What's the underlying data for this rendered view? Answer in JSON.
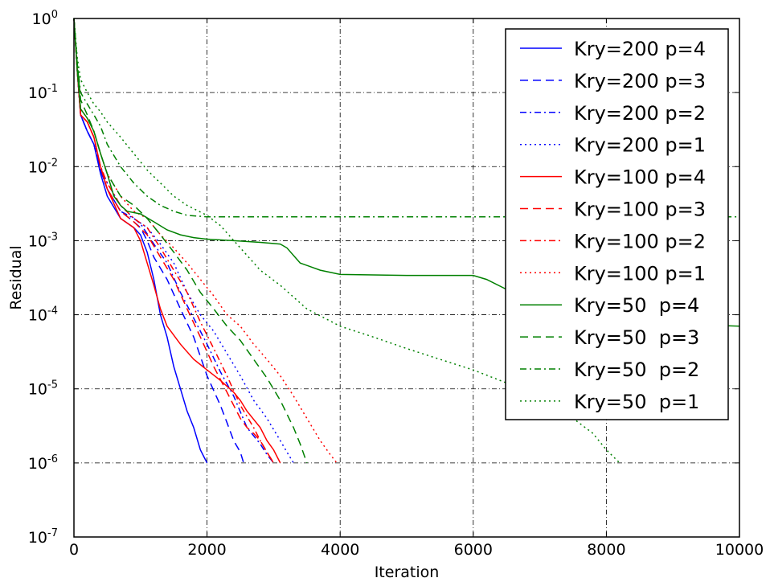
{
  "chart_data": {
    "type": "line",
    "title": "",
    "xlabel": "Iteration",
    "ylabel": "Residual",
    "xlim": [
      0,
      10000
    ],
    "ylim": [
      1e-07,
      1
    ],
    "yscale": "log",
    "grid": true,
    "legend_position": "top-right",
    "x_ticks": [
      "0",
      "2000",
      "4000",
      "6000",
      "8000",
      "10000"
    ],
    "y_ticks": [
      {
        "base": "10",
        "exp": "0"
      },
      {
        "base": "10",
        "exp": "-1"
      },
      {
        "base": "10",
        "exp": "-2"
      },
      {
        "base": "10",
        "exp": "-3"
      },
      {
        "base": "10",
        "exp": "-4"
      },
      {
        "base": "10",
        "exp": "-5"
      },
      {
        "base": "10",
        "exp": "-6"
      },
      {
        "base": "10",
        "exp": "-7"
      }
    ],
    "series": [
      {
        "name": "Kry=200 p=4",
        "color": "#0000ff",
        "style": "solid",
        "points": [
          [
            0,
            1
          ],
          [
            50,
            0.2
          ],
          [
            100,
            0.05
          ],
          [
            200,
            0.03
          ],
          [
            300,
            0.02
          ],
          [
            400,
            0.008
          ],
          [
            500,
            0.004
          ],
          [
            700,
            0.002
          ],
          [
            900,
            0.0015
          ],
          [
            1000,
            0.0012
          ],
          [
            1100,
            0.0007
          ],
          [
            1200,
            0.0003
          ],
          [
            1300,
            0.0001
          ],
          [
            1400,
            5e-05
          ],
          [
            1500,
            2e-05
          ],
          [
            1600,
            1e-05
          ],
          [
            1700,
            5e-06
          ],
          [
            1800,
            3e-06
          ],
          [
            1900,
            1.5e-06
          ],
          [
            2000,
            1e-06
          ]
        ]
      },
      {
        "name": "Kry=200 p=3",
        "color": "#0000ff",
        "style": "dashed",
        "points": [
          [
            0,
            1
          ],
          [
            50,
            0.2
          ],
          [
            100,
            0.05
          ],
          [
            200,
            0.03
          ],
          [
            300,
            0.02
          ],
          [
            400,
            0.009
          ],
          [
            500,
            0.005
          ],
          [
            700,
            0.0025
          ],
          [
            900,
            0.0018
          ],
          [
            1000,
            0.0015
          ],
          [
            1100,
            0.001
          ],
          [
            1200,
            0.0006
          ],
          [
            1400,
            0.0003
          ],
          [
            1600,
            0.00012
          ],
          [
            1800,
            5e-05
          ],
          [
            2000,
            1.5e-05
          ],
          [
            2200,
            6e-06
          ],
          [
            2300,
            3.5e-06
          ],
          [
            2400,
            2e-06
          ],
          [
            2500,
            1.4e-06
          ],
          [
            2550,
            1e-06
          ]
        ]
      },
      {
        "name": "Kry=200 p=2",
        "color": "#0000ff",
        "style": "dashdot",
        "points": [
          [
            0,
            1
          ],
          [
            50,
            0.2
          ],
          [
            100,
            0.05
          ],
          [
            200,
            0.03
          ],
          [
            300,
            0.02
          ],
          [
            400,
            0.009
          ],
          [
            500,
            0.005
          ],
          [
            700,
            0.0025
          ],
          [
            900,
            0.002
          ],
          [
            1000,
            0.0017
          ],
          [
            1200,
            0.0009
          ],
          [
            1400,
            0.0005
          ],
          [
            1600,
            0.0002
          ],
          [
            1800,
            9e-05
          ],
          [
            2000,
            4e-05
          ],
          [
            2200,
            1.7e-05
          ],
          [
            2400,
            8e-06
          ],
          [
            2600,
            3e-06
          ],
          [
            2800,
            1.8e-06
          ],
          [
            2900,
            1.3e-06
          ],
          [
            3000,
            1e-06
          ]
        ]
      },
      {
        "name": "Kry=200 p=1",
        "color": "#0000ff",
        "style": "dotted",
        "points": [
          [
            0,
            1
          ],
          [
            50,
            0.2
          ],
          [
            100,
            0.05
          ],
          [
            200,
            0.03
          ],
          [
            300,
            0.02
          ],
          [
            400,
            0.01
          ],
          [
            500,
            0.006
          ],
          [
            700,
            0.003
          ],
          [
            900,
            0.002
          ],
          [
            1100,
            0.0015
          ],
          [
            1300,
            0.0009
          ],
          [
            1500,
            0.0005
          ],
          [
            1700,
            0.0002
          ],
          [
            1900,
            0.0001
          ],
          [
            2100,
            6e-05
          ],
          [
            2300,
            3e-05
          ],
          [
            2500,
            1.5e-05
          ],
          [
            2700,
            7e-06
          ],
          [
            2900,
            4e-06
          ],
          [
            3100,
            2e-06
          ],
          [
            3200,
            1.4e-06
          ],
          [
            3300,
            1e-06
          ]
        ]
      },
      {
        "name": "Kry=100 p=4",
        "color": "#ff0000",
        "style": "solid",
        "points": [
          [
            0,
            1
          ],
          [
            50,
            0.2
          ],
          [
            100,
            0.05
          ],
          [
            200,
            0.04
          ],
          [
            300,
            0.025
          ],
          [
            400,
            0.01
          ],
          [
            500,
            0.005
          ],
          [
            700,
            0.002
          ],
          [
            900,
            0.0015
          ],
          [
            1000,
            0.001
          ],
          [
            1100,
            0.0005
          ],
          [
            1200,
            0.00025
          ],
          [
            1300,
            0.00012
          ],
          [
            1400,
            7e-05
          ],
          [
            1600,
            4e-05
          ],
          [
            1800,
            2.5e-05
          ],
          [
            2000,
            1.8e-05
          ],
          [
            2200,
            1.3e-05
          ],
          [
            2400,
            9e-06
          ],
          [
            2500,
            7e-06
          ],
          [
            2600,
            5e-06
          ],
          [
            2800,
            3e-06
          ],
          [
            2900,
            2e-06
          ],
          [
            3000,
            1.5e-06
          ],
          [
            3100,
            1e-06
          ]
        ]
      },
      {
        "name": "Kry=100 p=3",
        "color": "#ff0000",
        "style": "dashed",
        "points": [
          [
            0,
            1
          ],
          [
            50,
            0.2
          ],
          [
            100,
            0.05
          ],
          [
            200,
            0.04
          ],
          [
            300,
            0.025
          ],
          [
            400,
            0.01
          ],
          [
            500,
            0.005
          ],
          [
            700,
            0.0025
          ],
          [
            900,
            0.0018
          ],
          [
            1100,
            0.0012
          ],
          [
            1300,
            0.0006
          ],
          [
            1500,
            0.0003
          ],
          [
            1700,
            0.00012
          ],
          [
            1900,
            5e-05
          ],
          [
            2100,
            2e-05
          ],
          [
            2300,
            9e-06
          ],
          [
            2400,
            6e-06
          ],
          [
            2500,
            4e-06
          ],
          [
            2600,
            3e-06
          ],
          [
            2700,
            2.5e-06
          ],
          [
            2800,
            2e-06
          ],
          [
            2900,
            1.4e-06
          ],
          [
            3000,
            1e-06
          ]
        ]
      },
      {
        "name": "Kry=100 p=2",
        "color": "#ff0000",
        "style": "dashdot",
        "points": [
          [
            0,
            1
          ],
          [
            50,
            0.2
          ],
          [
            100,
            0.05
          ],
          [
            200,
            0.04
          ],
          [
            300,
            0.025
          ],
          [
            400,
            0.01
          ],
          [
            500,
            0.006
          ],
          [
            700,
            0.003
          ],
          [
            900,
            0.002
          ],
          [
            1100,
            0.0015
          ],
          [
            1300,
            0.0008
          ],
          [
            1500,
            0.0004
          ],
          [
            1700,
            0.0002
          ],
          [
            1900,
            8e-05
          ],
          [
            2100,
            3.5e-05
          ],
          [
            2300,
            1.5e-05
          ],
          [
            2500,
            6e-06
          ],
          [
            2700,
            3e-06
          ],
          [
            2800,
            2e-06
          ],
          [
            2900,
            1.4e-06
          ],
          [
            3000,
            1e-06
          ]
        ]
      },
      {
        "name": "Kry=100 p=1",
        "color": "#ff0000",
        "style": "dotted",
        "points": [
          [
            0,
            1
          ],
          [
            50,
            0.25
          ],
          [
            100,
            0.06
          ],
          [
            200,
            0.045
          ],
          [
            300,
            0.03
          ],
          [
            400,
            0.015
          ],
          [
            500,
            0.008
          ],
          [
            700,
            0.004
          ],
          [
            900,
            0.0025
          ],
          [
            1100,
            0.002
          ],
          [
            1300,
            0.0012
          ],
          [
            1500,
            0.0008
          ],
          [
            1700,
            0.0005
          ],
          [
            1900,
            0.0003
          ],
          [
            2100,
            0.00018
          ],
          [
            2300,
            0.0001
          ],
          [
            2500,
            7e-05
          ],
          [
            2700,
            4e-05
          ],
          [
            2900,
            2.5e-05
          ],
          [
            3100,
            1.5e-05
          ],
          [
            3300,
            8e-06
          ],
          [
            3500,
            4e-06
          ],
          [
            3700,
            2e-06
          ],
          [
            3850,
            1.3e-06
          ],
          [
            3950,
            1e-06
          ]
        ]
      },
      {
        "name": "Kry=50  p=4",
        "color": "#008000",
        "style": "solid",
        "points": [
          [
            0,
            1
          ],
          [
            50,
            0.2
          ],
          [
            100,
            0.06
          ],
          [
            200,
            0.045
          ],
          [
            300,
            0.03
          ],
          [
            400,
            0.015
          ],
          [
            500,
            0.008
          ],
          [
            600,
            0.004
          ],
          [
            700,
            0.003
          ],
          [
            800,
            0.0025
          ],
          [
            1000,
            0.0023
          ],
          [
            1200,
            0.0018
          ],
          [
            1400,
            0.0014
          ],
          [
            1600,
            0.0012
          ],
          [
            1800,
            0.0011
          ],
          [
            2000,
            0.00105
          ],
          [
            2400,
            0.001
          ],
          [
            2800,
            0.00095
          ],
          [
            3100,
            0.0009
          ],
          [
            3200,
            0.0008
          ],
          [
            3400,
            0.0005
          ],
          [
            3700,
            0.0004
          ],
          [
            4000,
            0.00035
          ],
          [
            5000,
            0.00034
          ],
          [
            6000,
            0.00034
          ],
          [
            6200,
            0.0003
          ],
          [
            6500,
            0.00022
          ],
          [
            7000,
            0.00012
          ],
          [
            7500,
            9e-05
          ],
          [
            8000,
            8e-05
          ],
          [
            9000,
            7.5e-05
          ],
          [
            10000,
            7e-05
          ]
        ]
      },
      {
        "name": "Kry=50  p=3",
        "color": "#008000",
        "style": "dashed",
        "points": [
          [
            0,
            1
          ],
          [
            50,
            0.25
          ],
          [
            100,
            0.08
          ],
          [
            200,
            0.05
          ],
          [
            300,
            0.03
          ],
          [
            400,
            0.015
          ],
          [
            500,
            0.008
          ],
          [
            700,
            0.004
          ],
          [
            900,
            0.003
          ],
          [
            1100,
            0.002
          ],
          [
            1300,
            0.0012
          ],
          [
            1500,
            0.0007
          ],
          [
            1700,
            0.0004
          ],
          [
            1900,
            0.0002
          ],
          [
            2100,
            0.00012
          ],
          [
            2300,
            7e-05
          ],
          [
            2500,
            4.5e-05
          ],
          [
            2700,
            2.5e-05
          ],
          [
            2900,
            1.4e-05
          ],
          [
            3100,
            7e-06
          ],
          [
            3300,
            3e-06
          ],
          [
            3400,
            1.8e-06
          ],
          [
            3500,
            1e-06
          ]
        ]
      },
      {
        "name": "Kry=50  p=2",
        "color": "#008000",
        "style": "dashdot",
        "points": [
          [
            0,
            1
          ],
          [
            50,
            0.25
          ],
          [
            100,
            0.1
          ],
          [
            200,
            0.07
          ],
          [
            300,
            0.05
          ],
          [
            400,
            0.035
          ],
          [
            500,
            0.02
          ],
          [
            700,
            0.01
          ],
          [
            900,
            0.006
          ],
          [
            1100,
            0.004
          ],
          [
            1300,
            0.003
          ],
          [
            1500,
            0.0025
          ],
          [
            1700,
            0.0022
          ],
          [
            2000,
            0.0021
          ],
          [
            3000,
            0.0021
          ],
          [
            5000,
            0.0021
          ],
          [
            7000,
            0.0021
          ],
          [
            9000,
            0.0021
          ],
          [
            10000,
            0.0021
          ]
        ]
      },
      {
        "name": "Kry=50  p=1",
        "color": "#008000",
        "style": "dotted",
        "points": [
          [
            0,
            1
          ],
          [
            50,
            0.3
          ],
          [
            100,
            0.15
          ],
          [
            200,
            0.1
          ],
          [
            300,
            0.07
          ],
          [
            400,
            0.055
          ],
          [
            500,
            0.04
          ],
          [
            700,
            0.025
          ],
          [
            900,
            0.015
          ],
          [
            1100,
            0.009
          ],
          [
            1300,
            0.006
          ],
          [
            1500,
            0.004
          ],
          [
            1700,
            0.003
          ],
          [
            2000,
            0.0022
          ],
          [
            2200,
            0.0016
          ],
          [
            2500,
            0.0008
          ],
          [
            2800,
            0.0004
          ],
          [
            3100,
            0.00025
          ],
          [
            3500,
            0.00012
          ],
          [
            4000,
            7e-05
          ],
          [
            4500,
            5e-05
          ],
          [
            5000,
            3.5e-05
          ],
          [
            5500,
            2.5e-05
          ],
          [
            6000,
            1.8e-05
          ],
          [
            6500,
            1.2e-05
          ],
          [
            7000,
            7e-06
          ],
          [
            7500,
            4e-06
          ],
          [
            7800,
            2.5e-06
          ],
          [
            8000,
            1.5e-06
          ],
          [
            8200,
            1e-06
          ]
        ]
      }
    ]
  }
}
